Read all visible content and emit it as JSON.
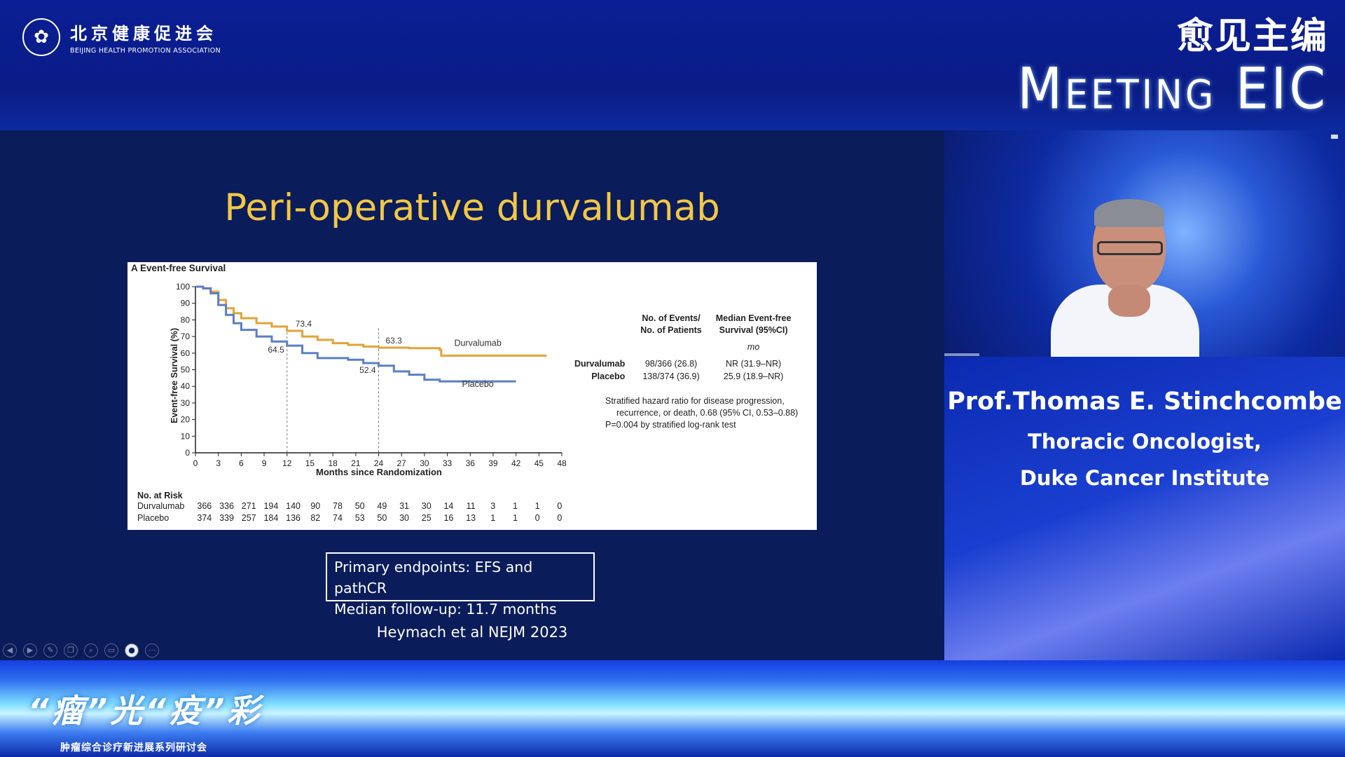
{
  "header": {
    "org_name_cn": "北京健康促进会",
    "org_name_en": "BEIJING HEALTH PROMOTION ASSOCIATION",
    "brand_cn": "愈见主编",
    "brand_en": "Meeting EIC"
  },
  "slide": {
    "title": "Peri-operative durvalumab",
    "figure_label": "A  Event-free Survival",
    "endpoint_lines": [
      "Primary endpoints: EFS and pathCR",
      "Median follow-up: 11.7 months"
    ],
    "citation": "Heymach et al NEJM 2023",
    "toolbar_icons": [
      "prev-icon",
      "next-icon",
      "pen-icon",
      "copy-icon",
      "zoom-icon",
      "subtitle-icon",
      "camera-icon",
      "more-icon"
    ]
  },
  "chart_data": {
    "type": "line",
    "title": "Event-free Survival",
    "xlabel": "Months since Randomization",
    "ylabel": "Event-free Survival (%)",
    "xlim": [
      0,
      48
    ],
    "ylim": [
      0,
      100
    ],
    "x_ticks": [
      0,
      3,
      6,
      9,
      12,
      15,
      18,
      21,
      24,
      27,
      30,
      33,
      36,
      39,
      42,
      45,
      48
    ],
    "y_ticks": [
      0,
      10,
      20,
      30,
      40,
      50,
      60,
      70,
      80,
      90,
      100
    ],
    "series": [
      {
        "name": "Durvalumab",
        "color": "#e0a33a",
        "points": [
          [
            0,
            100
          ],
          [
            1,
            99
          ],
          [
            2,
            97
          ],
          [
            3,
            92
          ],
          [
            4,
            87
          ],
          [
            5,
            84
          ],
          [
            6,
            81
          ],
          [
            8,
            78
          ],
          [
            10,
            76
          ],
          [
            12,
            73.4
          ],
          [
            14,
            70
          ],
          [
            16,
            68
          ],
          [
            18,
            66
          ],
          [
            20,
            65
          ],
          [
            22,
            64
          ],
          [
            24,
            63.3
          ],
          [
            28,
            63
          ],
          [
            32,
            62
          ],
          [
            32.2,
            58.5
          ],
          [
            42,
            58.5
          ],
          [
            46,
            58.5
          ]
        ]
      },
      {
        "name": "Placebo",
        "color": "#5b7fc4",
        "points": [
          [
            0,
            100
          ],
          [
            1,
            99
          ],
          [
            2,
            96
          ],
          [
            3,
            89
          ],
          [
            4,
            83
          ],
          [
            5,
            78
          ],
          [
            6,
            74
          ],
          [
            8,
            70
          ],
          [
            10,
            67
          ],
          [
            12,
            64.5
          ],
          [
            14,
            60
          ],
          [
            16,
            57
          ],
          [
            18,
            57
          ],
          [
            20,
            56
          ],
          [
            22,
            54
          ],
          [
            24,
            52.4
          ],
          [
            26,
            49
          ],
          [
            28,
            47
          ],
          [
            30,
            44
          ],
          [
            32,
            43
          ],
          [
            36,
            43
          ],
          [
            40,
            43
          ],
          [
            42,
            43
          ]
        ]
      }
    ],
    "annotations": [
      {
        "x": 12,
        "y": 73.4,
        "text": "73.4"
      },
      {
        "x": 12,
        "y": 64.5,
        "text": "64.5"
      },
      {
        "x": 24,
        "y": 63.3,
        "text": "63.3"
      },
      {
        "x": 24,
        "y": 52.4,
        "text": "52.4"
      }
    ],
    "reference_lines_x": [
      12,
      24
    ],
    "risk_table": {
      "title": "No. at Risk",
      "rows": [
        {
          "name": "Durvalumab",
          "values": [
            "366",
            "336",
            "271",
            "194",
            "140",
            "90",
            "78",
            "50",
            "49",
            "31",
            "30",
            "14",
            "11",
            "3",
            "1",
            "1",
            "0"
          ]
        },
        {
          "name": "Placebo",
          "values": [
            "374",
            "339",
            "257",
            "184",
            "136",
            "82",
            "74",
            "53",
            "50",
            "30",
            "25",
            "16",
            "13",
            "1",
            "1",
            "0",
            "0"
          ]
        }
      ]
    },
    "stats_table": {
      "headers": [
        "",
        "No. of Events/\nNo. of Patients",
        "Median Event-free\nSurvival (95%CI)"
      ],
      "unit": "mo",
      "rows": [
        [
          "Durvalumab",
          "98/366 (26.8)",
          "NR (31.9–NR)"
        ],
        [
          "Placebo",
          "138/374 (36.9)",
          "25.9 (18.9–NR)"
        ]
      ]
    },
    "hr_note": [
      "Stratified hazard ratio for disease progression,",
      "recurrence, or death, 0.68 (95% CI, 0.53–0.88)",
      "P=0.004 by stratified log-rank test"
    ]
  },
  "speaker": {
    "name": "Prof.Thomas E. Stinchcombe",
    "title_line1": "Thoracic Oncologist,",
    "title_line2": "Duke Cancer Institute"
  },
  "footer": {
    "event_title": "“瘤”光“疫”彩",
    "event_subtitle": "肿瘤综合诊疗新进展系列研讨会"
  }
}
